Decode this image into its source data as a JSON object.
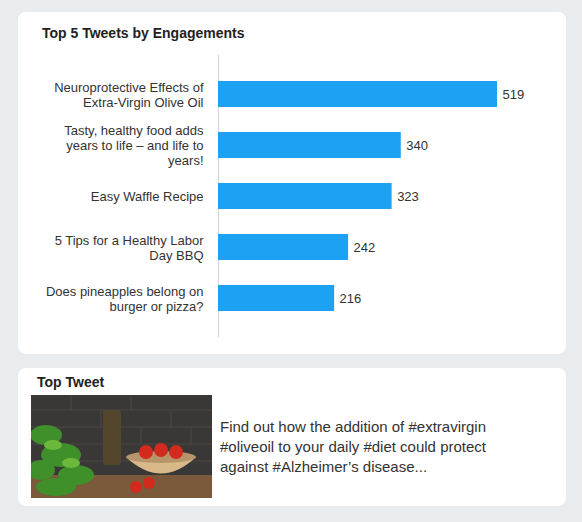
{
  "chart_data": {
    "type": "bar",
    "title": "Top 5 Tweets by Engagements",
    "categories": [
      "Neuroprotective Effects of Extra-Virgin Olive Oil",
      "Tasty, healthy food adds years to life – and life to years!",
      "Easy Waffle Recipe",
      "5 Tips for a Healthy Labor Day BBQ",
      "Does pineapples belong on burger or pizza?"
    ],
    "values": [
      519,
      340,
      323,
      242,
      216
    ],
    "color": "#1da1f2",
    "orientation": "horizontal",
    "data_labels": true,
    "tick_labels": "y"
  },
  "top_tweet": {
    "title": "Top Tweet",
    "text": "Find out how the addition of #extravirgin #oliveoil to your daily #diet could protect against #Alzheimer’s disease..."
  }
}
